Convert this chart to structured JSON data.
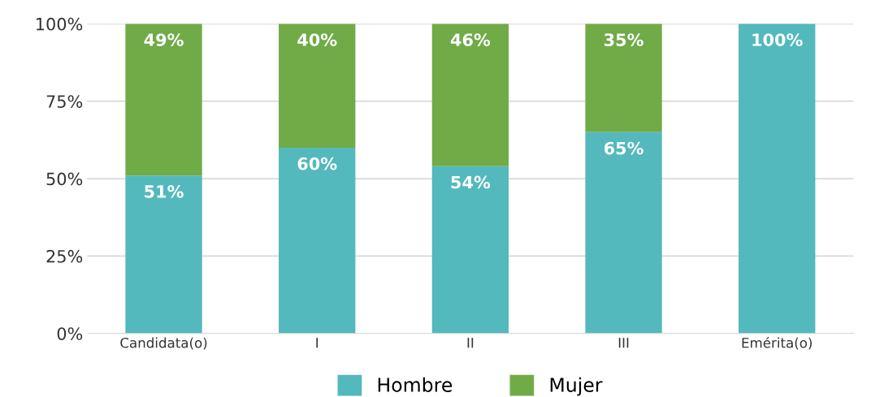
{
  "chart_data": {
    "type": "bar",
    "stacked": true,
    "categories": [
      "Candidata(o)",
      "I",
      "II",
      "III",
      "Emérita(o)"
    ],
    "series": [
      {
        "name": "Hombre",
        "color": "#53b9bd",
        "values": [
          51,
          60,
          54,
          65,
          100
        ],
        "value_labels": [
          "51%",
          "60%",
          "54%",
          "65%",
          "100%"
        ]
      },
      {
        "name": "Mujer",
        "color": "#71ab48",
        "values": [
          49,
          40,
          46,
          35,
          0
        ],
        "value_labels": [
          "49%",
          "40%",
          "46%",
          "35%",
          null
        ]
      }
    ],
    "ylim": [
      0,
      100
    ],
    "yticks": [
      {
        "value": 0,
        "label": "0%"
      },
      {
        "value": 25,
        "label": "25%"
      },
      {
        "value": 50,
        "label": "50%"
      },
      {
        "value": 75,
        "label": "75%"
      },
      {
        "value": 100,
        "label": "100%"
      }
    ],
    "grid": "y",
    "legend": "bottom"
  }
}
